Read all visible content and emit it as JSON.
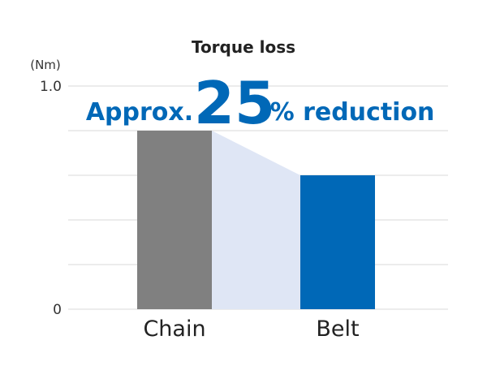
{
  "chart_data": {
    "type": "bar",
    "title": "Torque loss",
    "unit": "(Nm)",
    "categories": [
      "Chain",
      "Belt"
    ],
    "values": [
      0.8,
      0.6
    ],
    "ylim": [
      0,
      1.0
    ],
    "yticks": [
      {
        "value": 0,
        "label": "0"
      },
      {
        "value": 1.0,
        "label": "1.0"
      }
    ],
    "gridlines": [
      0,
      0.2,
      0.4,
      0.6,
      0.8,
      1.0
    ],
    "colors": {
      "Chain": "#808080",
      "Belt": "#0068b7",
      "connector": "#dfe6f5",
      "accent": "#0068b7",
      "grid": "#d9d9d9"
    },
    "annotation": {
      "prefix": "Approx.",
      "value": "25",
      "suffix": "% reduction"
    },
    "grid": true,
    "legend": "none"
  }
}
